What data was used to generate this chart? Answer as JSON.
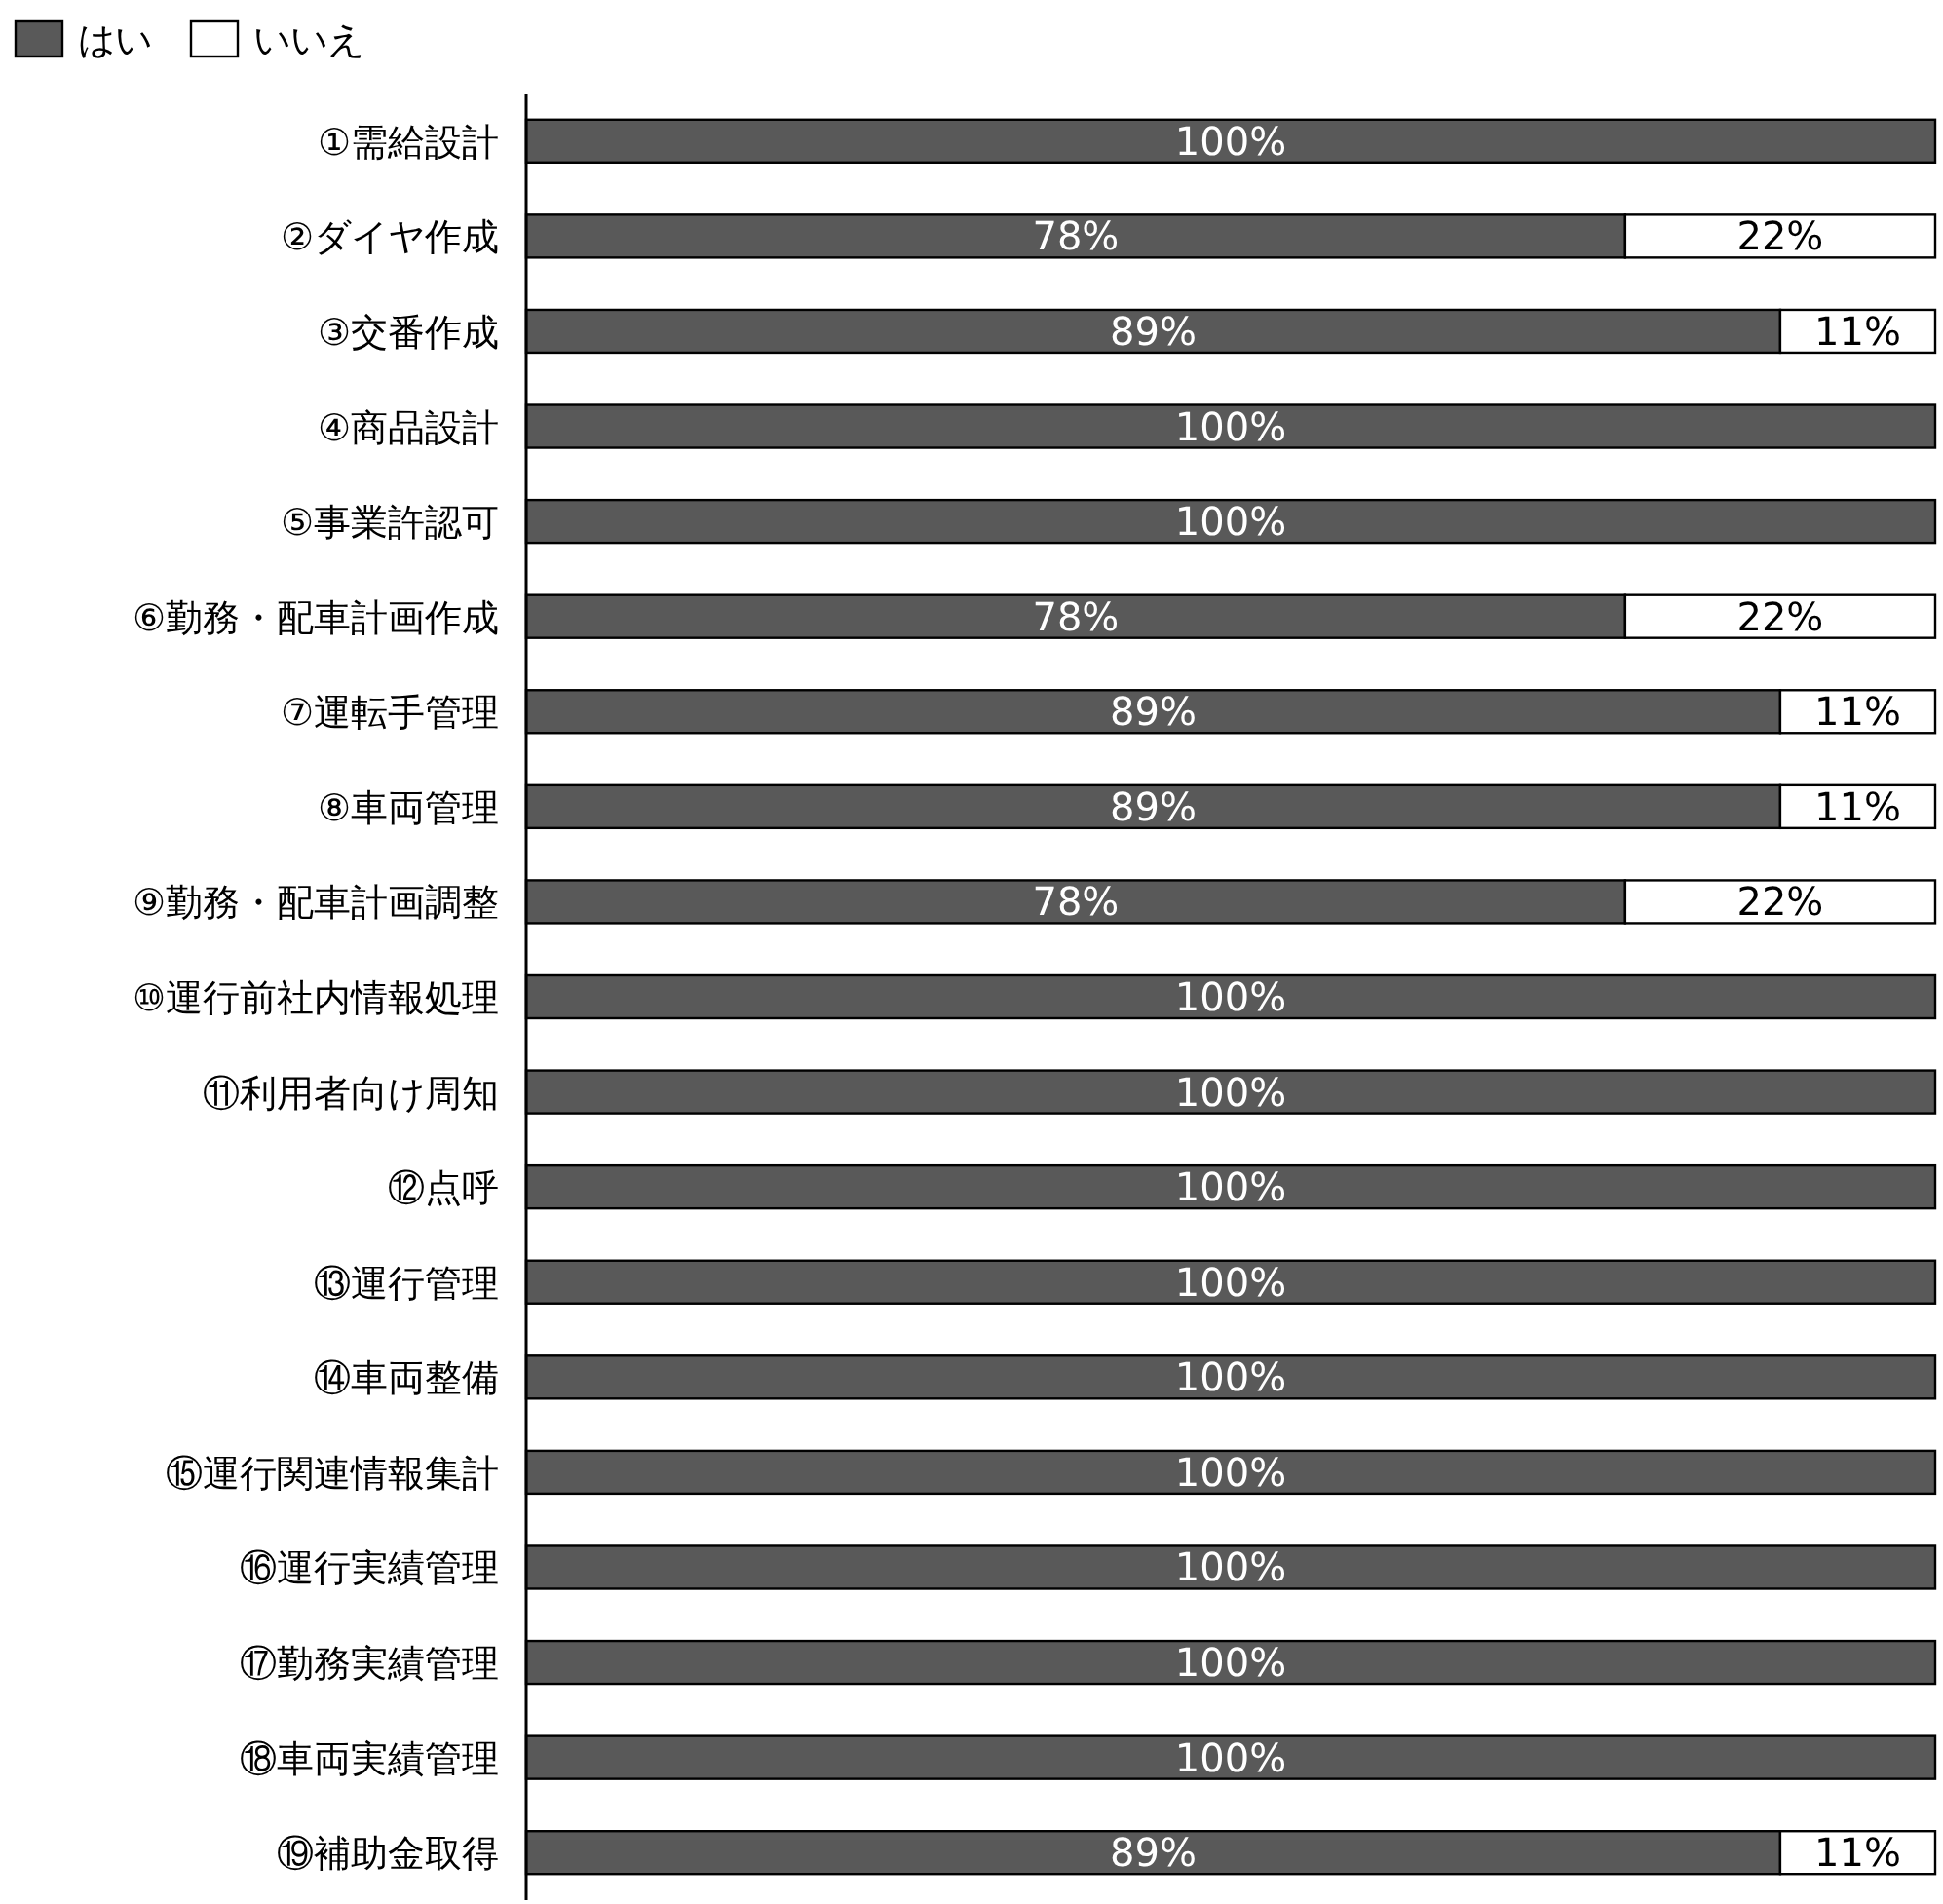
{
  "chart_data": {
    "type": "bar",
    "orientation": "horizontal",
    "stacked": true,
    "legend": "top left",
    "xlim": [
      0,
      100
    ],
    "categories": [
      "①需給設計",
      "②ダイヤ作成",
      "③交番作成",
      "④商品設計",
      "⑤事業許認可",
      "⑥勤務・配車計画作成",
      "⑦運転手管理",
      "⑧車両管理",
      "⑨勤務・配車計画調整",
      "⑩運行前社内情報処理",
      "⑪利用者向け周知",
      "⑫点呼",
      "⑬運行管理",
      "⑭車両整備",
      "⑮運行関連情報集計",
      "⑯運行実績管理",
      "⑰勤務実績管理",
      "⑱車両実績管理",
      "⑲補助金取得"
    ],
    "series": [
      {
        "name": "はい",
        "color": "#595959",
        "values": [
          100,
          78,
          89,
          100,
          100,
          78,
          89,
          89,
          78,
          100,
          100,
          100,
          100,
          100,
          100,
          100,
          100,
          100,
          89
        ],
        "value_labels": [
          "100%",
          "78%",
          "89%",
          "100%",
          "100%",
          "78%",
          "89%",
          "89%",
          "78%",
          "100%",
          "100%",
          "100%",
          "100%",
          "100%",
          "100%",
          "100%",
          "100%",
          "100%",
          "89%"
        ]
      },
      {
        "name": "いいえ",
        "color": "#ffffff",
        "values": [
          0,
          22,
          11,
          0,
          0,
          22,
          11,
          11,
          22,
          0,
          0,
          0,
          0,
          0,
          0,
          0,
          0,
          0,
          11
        ],
        "value_labels": [
          null,
          "22%",
          "11%",
          null,
          null,
          "22%",
          "11%",
          "11%",
          "22%",
          null,
          null,
          null,
          null,
          null,
          null,
          null,
          null,
          null,
          "11%"
        ]
      }
    ]
  }
}
